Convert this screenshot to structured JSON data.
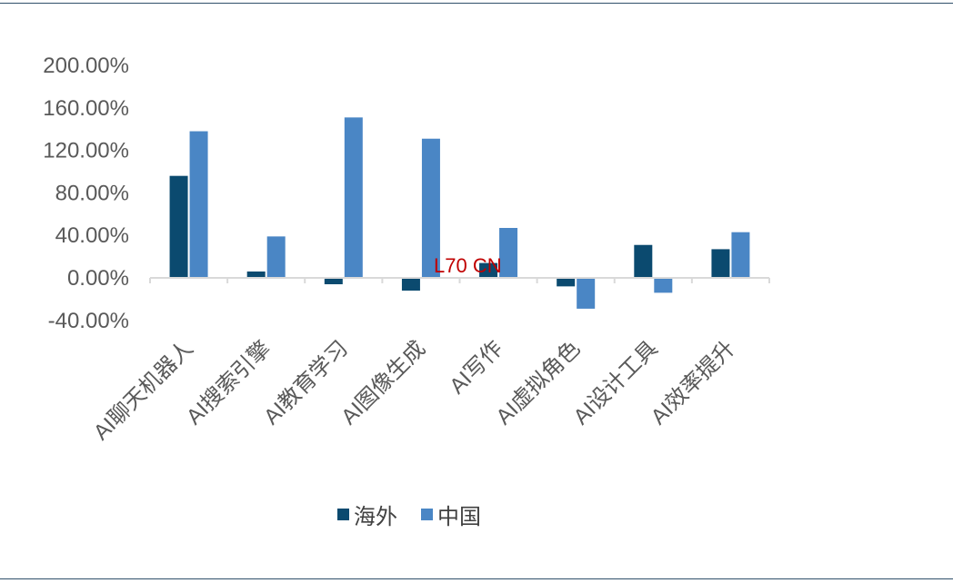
{
  "chart_data": {
    "type": "bar",
    "categories": [
      "AI聊天机器人",
      "AI搜索引擎",
      "AI教育学习",
      "AI图像生成",
      "AI写作",
      "AI虚拟角色",
      "AI设计工具",
      "AI效率提升"
    ],
    "series": [
      {
        "name": "海外",
        "values": [
          0.96,
          0.06,
          -0.06,
          -0.12,
          0.14,
          -0.08,
          0.31,
          0.27
        ],
        "color": "#0b4a6f"
      },
      {
        "name": "中国",
        "values": [
          1.38,
          0.39,
          1.51,
          1.31,
          0.47,
          -0.29,
          -0.14,
          0.43
        ],
        "color": "#4a86c5"
      }
    ],
    "y_ticks": [
      {
        "value": 2.0,
        "label": "200.00%"
      },
      {
        "value": 1.6,
        "label": "160.00%"
      },
      {
        "value": 1.2,
        "label": "120.00%"
      },
      {
        "value": 0.8,
        "label": "80.00%"
      },
      {
        "value": 0.4,
        "label": "40.00%"
      },
      {
        "value": 0.0,
        "label": "0.00%"
      },
      {
        "value": -0.4,
        "label": "-40.00%"
      }
    ],
    "ylim": [
      -0.4,
      2.0
    ],
    "grid": false,
    "legend_position": "bottom",
    "title": "",
    "xlabel": "",
    "ylabel": "",
    "watermark": "L70 CN",
    "axis_color": "#d9d9d9"
  }
}
